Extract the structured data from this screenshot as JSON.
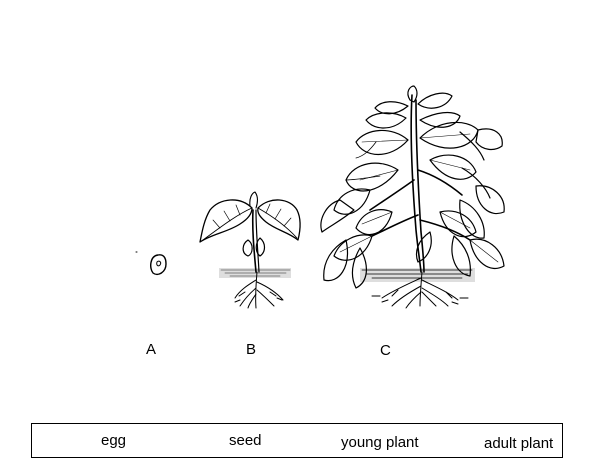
{
  "stages": [
    {
      "letter": "A",
      "depicts": "bean-seed"
    },
    {
      "letter": "B",
      "depicts": "seedling"
    },
    {
      "letter": "C",
      "depicts": "mature-bean-plant"
    }
  ],
  "word_bank": [
    "egg",
    "seed",
    "young plant",
    "adult plant"
  ],
  "colors": {
    "ink": "#000000",
    "background": "#ffffff"
  }
}
